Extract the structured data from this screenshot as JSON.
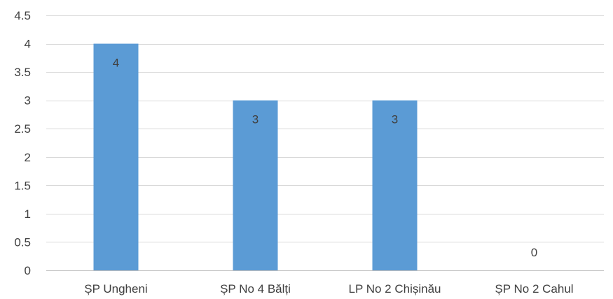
{
  "chart_data": {
    "type": "bar",
    "categories": [
      "ȘP Ungheni",
      "ȘP No 4 Bălți",
      "LP No 2 Chișinău",
      "ȘP No 2 Cahul"
    ],
    "series": [
      {
        "values": [
          4,
          3,
          3,
          0
        ]
      }
    ],
    "data_labels": [
      "4",
      "3",
      "3",
      "0"
    ],
    "y_ticks": [
      "0",
      "0.5",
      "1",
      "1.5",
      "2",
      "2.5",
      "3",
      "3.5",
      "4",
      "4.5"
    ],
    "ylim": [
      0,
      4.5
    ],
    "grid": true,
    "legend": "none",
    "bar_color": "#5b9bd5",
    "title": "",
    "xlabel": "",
    "ylabel": ""
  }
}
